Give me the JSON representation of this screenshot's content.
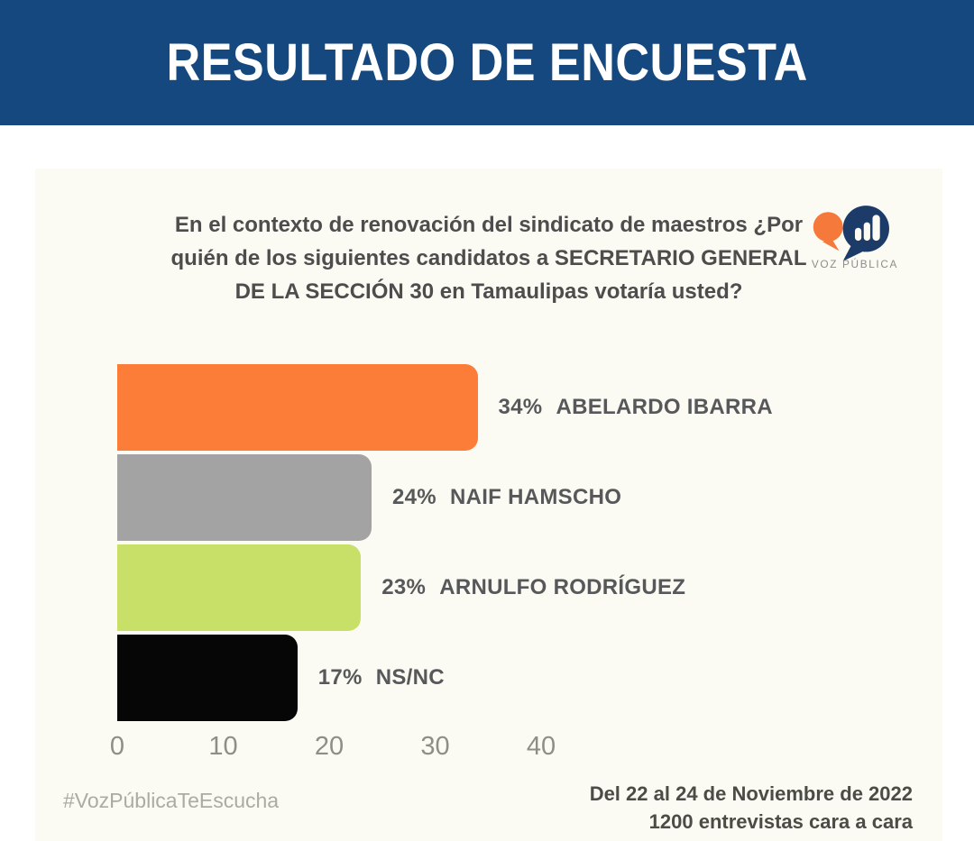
{
  "header": {
    "title": "RESULTADO DE ENCUESTA",
    "bg_color": "#14487F"
  },
  "card": {
    "question": "En el contexto de renovación del sindicato de maestros ¿Por quién de los siguientes candidatos a SECRETARIO GENERAL DE LA SECCIÓN 30 en Tamaulipas votaría usted?",
    "logo": {
      "brand": "VOZ PÚBLICA",
      "orange": "#F4793B",
      "navy": "#1C3B69"
    }
  },
  "chart_data": {
    "type": "bar",
    "orientation": "horizontal",
    "title": "",
    "xlabel": "",
    "ylabel": "",
    "categories": [
      "ABELARDO IBARRA",
      "NAIF HAMSCHO",
      "ARNULFO RODRÍGUEZ",
      "NS/NC"
    ],
    "values": [
      34,
      24,
      23,
      17
    ],
    "value_labels": [
      "34%",
      "24%",
      "23%",
      "17%"
    ],
    "bar_colors": [
      "#FB7D38",
      "#A3A3A3",
      "#C8DF68",
      "#060606"
    ],
    "x_ticks": [
      "0",
      "10",
      "20",
      "30",
      "40"
    ],
    "x_tick_values": [
      0,
      10,
      20,
      30,
      40
    ],
    "xlim": [
      0,
      45
    ],
    "grid": false,
    "legend": false
  },
  "footer": {
    "hashtag": "#VozPúblicaTeEscucha",
    "date_line": "Del 22 al 24 de Noviembre de 2022",
    "sample_line": "1200 entrevistas cara a cara"
  }
}
